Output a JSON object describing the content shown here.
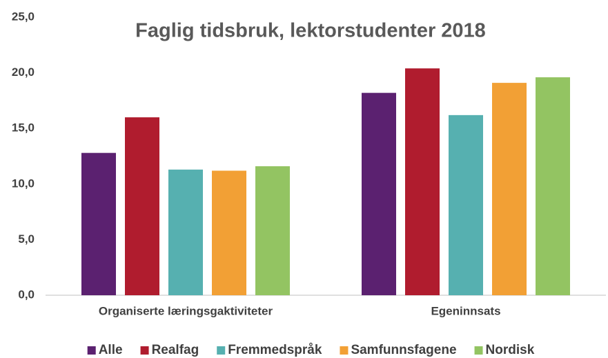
{
  "chart_data": {
    "type": "bar",
    "title": "Faglig tidsbruk, lektorstudenter 2018",
    "categories": [
      "Organiserte læringsgaktiviteter",
      "Egeninnsats"
    ],
    "series": [
      {
        "name": "Alle",
        "color": "#5b2170",
        "values": [
          12.8,
          18.2
        ]
      },
      {
        "name": "Realfag",
        "color": "#b01c2e",
        "values": [
          16.0,
          20.4
        ]
      },
      {
        "name": "Fremmedspråk",
        "color": "#56b0b0",
        "values": [
          11.3,
          16.2
        ]
      },
      {
        "name": "Samfunnsfagene",
        "color": "#f2a035",
        "values": [
          11.2,
          19.1
        ]
      },
      {
        "name": "Nordisk",
        "color": "#93c462",
        "values": [
          11.6,
          19.6
        ]
      }
    ],
    "ylim": [
      0,
      25
    ],
    "yticks": [
      {
        "value": 0,
        "label": "0,0"
      },
      {
        "value": 5,
        "label": "5,0"
      },
      {
        "value": 10,
        "label": "10,0"
      },
      {
        "value": 15,
        "label": "15,0"
      },
      {
        "value": 20,
        "label": "20,0"
      },
      {
        "value": 25,
        "label": "25,0"
      }
    ],
    "grid": false,
    "legend": "bottom"
  }
}
